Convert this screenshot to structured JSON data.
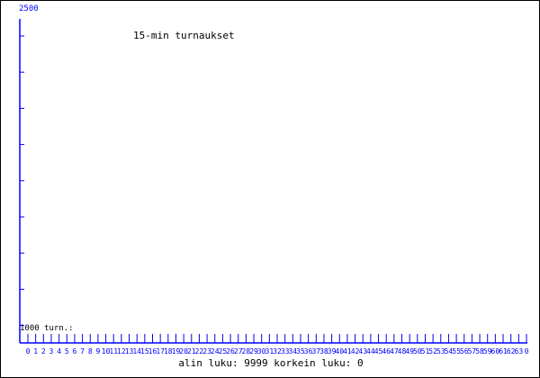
{
  "chart_data": {
    "type": "line",
    "title": "15-min turnaukset",
    "y_top_label": "2500",
    "y_bottom_label": "1000 turn.:",
    "ylim": [
      1000,
      2500
    ],
    "x_tick_labels": [
      "0",
      "1",
      "2",
      "3",
      "4",
      "5",
      "6",
      "7",
      "8",
      "9",
      "10",
      "11",
      "12",
      "13",
      "14",
      "15",
      "16",
      "17",
      "18",
      "19",
      "20",
      "21",
      "22",
      "23",
      "24",
      "25",
      "26",
      "27",
      "28",
      "29",
      "30",
      "31",
      "32",
      "33",
      "34",
      "35",
      "36",
      "37",
      "38",
      "39",
      "40",
      "41",
      "42",
      "43",
      "44",
      "45",
      "46",
      "47",
      "48",
      "49",
      "50",
      "51",
      "52",
      "53",
      "54",
      "55",
      "56",
      "57",
      "58",
      "59",
      "60",
      "61",
      "62",
      "63",
      "0"
    ],
    "series": [],
    "axis_color": "#0000ff",
    "grid": false
  },
  "footer": {
    "text": "alin luku: 9999  korkein luku: 0"
  }
}
